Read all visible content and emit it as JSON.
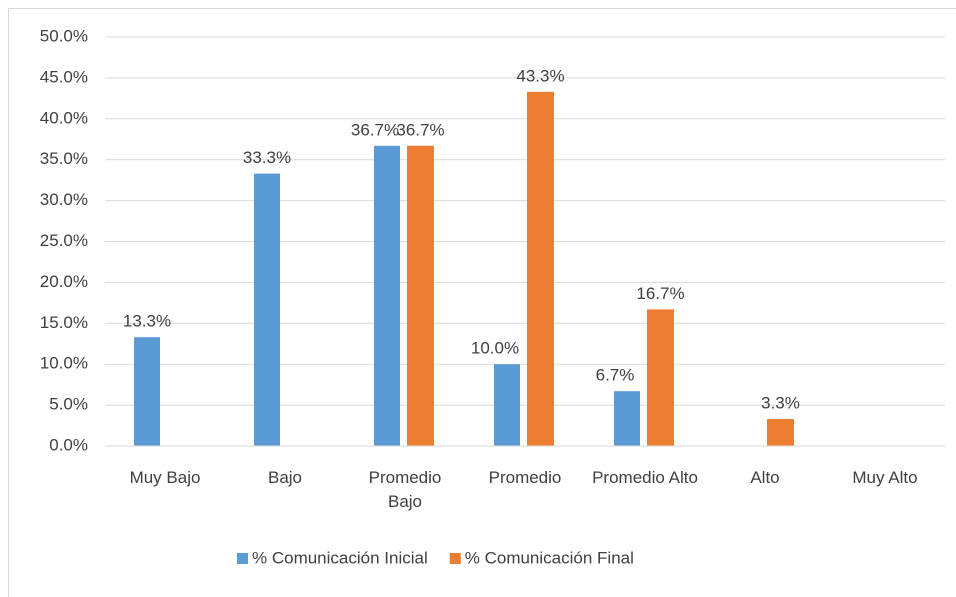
{
  "chart_data": {
    "type": "bar",
    "categories": [
      "Muy Bajo",
      "Bajo",
      "Promedio Bajo",
      "Promedio",
      "Promedio Alto",
      "Alto",
      "Muy Alto"
    ],
    "series": [
      {
        "name": "% Comunicación Inicial",
        "color": "#5b9bd5",
        "values": [
          13.3,
          33.3,
          36.7,
          10.0,
          6.7,
          null,
          null
        ],
        "value_labels": [
          "13.3%",
          "33.3%",
          "36.7%",
          "10.0%",
          "6.7%",
          null,
          null
        ]
      },
      {
        "name": "% Comunicación Final",
        "color": "#ed7d31",
        "values": [
          null,
          null,
          36.7,
          43.3,
          16.7,
          3.3,
          null
        ],
        "value_labels": [
          null,
          null,
          "36.7%",
          "43.3%",
          "16.7%",
          "3.3%",
          null
        ]
      }
    ],
    "ylim": [
      0,
      50
    ],
    "yticks": [
      {
        "value": 0,
        "label": "0.0%"
      },
      {
        "value": 5,
        "label": "5.0%"
      },
      {
        "value": 10,
        "label": "10.0%"
      },
      {
        "value": 15,
        "label": "15.0%"
      },
      {
        "value": 20,
        "label": "20.0%"
      },
      {
        "value": 25,
        "label": "25.0%"
      },
      {
        "value": 30,
        "label": "30.0%"
      },
      {
        "value": 35,
        "label": "35.0%"
      },
      {
        "value": 40,
        "label": "40.0%"
      },
      {
        "value": 45,
        "label": "45.0%"
      },
      {
        "value": 50,
        "label": "50.0%"
      }
    ],
    "grid": true,
    "legend": "bottom"
  }
}
